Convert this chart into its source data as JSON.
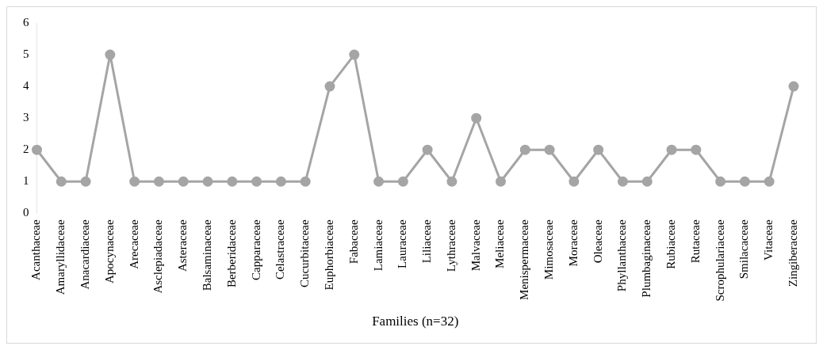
{
  "chart_data": {
    "type": "line",
    "xlabel": "Families (n=32)",
    "categories": [
      "Acanthaceae",
      "Amaryllidaceae",
      "Anacardiaceae",
      "Apocynaceae",
      "Arecaceae",
      "Asclepiadaceae",
      "Asteraceae",
      "Balsaminaceae",
      "Berberidaceae",
      "Capparaceae",
      "Celastraceae",
      "Cucurbitaceae",
      "Euphorbiaceae",
      "Fabaceae",
      "Lamiaceae",
      "Lauraceae",
      "Liliaceae",
      "Lythraceae",
      "Malvaceae",
      "Meliaceae",
      "Menispermaceae",
      "Mimosaceae",
      "Moraceae",
      "Oleaceae",
      "Phyllanthaceae",
      "Plumbaginaceae",
      "Rubiaceae",
      "Rutaceae",
      "Scrophulariaceae",
      "Smilacaceae",
      "Vitaceae",
      "Zingiberaceae"
    ],
    "values": [
      2,
      1,
      1,
      5,
      1,
      1,
      1,
      1,
      1,
      1,
      1,
      1,
      4,
      5,
      1,
      1,
      2,
      1,
      3,
      1,
      2,
      2,
      1,
      2,
      1,
      1,
      2,
      2,
      1,
      1,
      1,
      4
    ],
    "color": "#a5a5a5",
    "ylim": [
      0,
      6
    ],
    "yticks": [
      0,
      1,
      2,
      3,
      4,
      5,
      6
    ],
    "grid": false,
    "legend": false,
    "marker": "circle",
    "line_style": "solid"
  }
}
